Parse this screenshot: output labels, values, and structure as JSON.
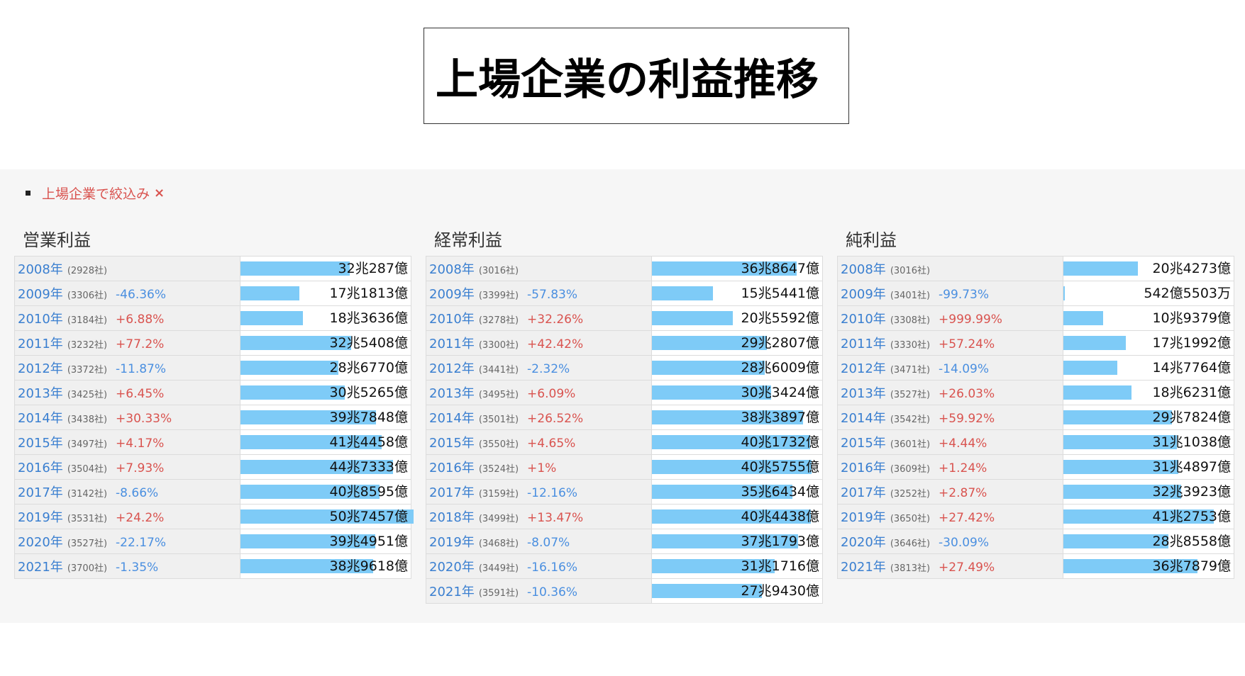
{
  "title": "上場企業の利益推移",
  "filter": {
    "label": "上場企業で絞込み",
    "close_symbol": "×"
  },
  "colors": {
    "bar": "#7ecbf7",
    "positive": "#d9534f",
    "negative": "#4a8fe0",
    "year": "#3a7fd0"
  },
  "chart_data": [
    {
      "type": "table",
      "title": "営業利益",
      "scale_max": 507457,
      "rows": [
        {
          "year": "2008年",
          "count": "(2928社)",
          "change": "",
          "value": "32兆287億",
          "value_oku": 320287
        },
        {
          "year": "2009年",
          "count": "(3306社)",
          "change": "-46.36%",
          "value": "17兆1813億",
          "value_oku": 171813
        },
        {
          "year": "2010年",
          "count": "(3184社)",
          "change": "+6.88%",
          "value": "18兆3636億",
          "value_oku": 183636
        },
        {
          "year": "2011年",
          "count": "(3232社)",
          "change": "+77.2%",
          "value": "32兆5408億",
          "value_oku": 325408
        },
        {
          "year": "2012年",
          "count": "(3372社)",
          "change": "-11.87%",
          "value": "28兆6770億",
          "value_oku": 286770
        },
        {
          "year": "2013年",
          "count": "(3425社)",
          "change": "+6.45%",
          "value": "30兆5265億",
          "value_oku": 305265
        },
        {
          "year": "2014年",
          "count": "(3438社)",
          "change": "+30.33%",
          "value": "39兆7848億",
          "value_oku": 397848
        },
        {
          "year": "2015年",
          "count": "(3497社)",
          "change": "+4.17%",
          "value": "41兆4458億",
          "value_oku": 414458
        },
        {
          "year": "2016年",
          "count": "(3504社)",
          "change": "+7.93%",
          "value": "44兆7333億",
          "value_oku": 447333
        },
        {
          "year": "2017年",
          "count": "(3142社)",
          "change": "-8.66%",
          "value": "40兆8595億",
          "value_oku": 408595
        },
        {
          "year": "2019年",
          "count": "(3531社)",
          "change": "+24.2%",
          "value": "50兆7457億",
          "value_oku": 507457
        },
        {
          "year": "2020年",
          "count": "(3527社)",
          "change": "-22.17%",
          "value": "39兆4951億",
          "value_oku": 394951
        },
        {
          "year": "2021年",
          "count": "(3700社)",
          "change": "-1.35%",
          "value": "38兆9618億",
          "value_oku": 389618
        }
      ]
    },
    {
      "type": "table",
      "title": "経常利益",
      "scale_max": 440000,
      "rows": [
        {
          "year": "2008年",
          "count": "(3016社)",
          "change": "",
          "value": "36兆8647億",
          "value_oku": 368647
        },
        {
          "year": "2009年",
          "count": "(3399社)",
          "change": "-57.83%",
          "value": "15兆5441億",
          "value_oku": 155441
        },
        {
          "year": "2010年",
          "count": "(3278社)",
          "change": "+32.26%",
          "value": "20兆5592億",
          "value_oku": 205592
        },
        {
          "year": "2011年",
          "count": "(3300社)",
          "change": "+42.42%",
          "value": "29兆2807億",
          "value_oku": 292807
        },
        {
          "year": "2012年",
          "count": "(3441社)",
          "change": "-2.32%",
          "value": "28兆6009億",
          "value_oku": 286009
        },
        {
          "year": "2013年",
          "count": "(3495社)",
          "change": "+6.09%",
          "value": "30兆3424億",
          "value_oku": 303424
        },
        {
          "year": "2014年",
          "count": "(3501社)",
          "change": "+26.52%",
          "value": "38兆3897億",
          "value_oku": 383897
        },
        {
          "year": "2015年",
          "count": "(3550社)",
          "change": "+4.65%",
          "value": "40兆1732億",
          "value_oku": 401732
        },
        {
          "year": "2016年",
          "count": "(3524社)",
          "change": "+1%",
          "value": "40兆5755億",
          "value_oku": 405755
        },
        {
          "year": "2017年",
          "count": "(3159社)",
          "change": "-12.16%",
          "value": "35兆6434億",
          "value_oku": 356434
        },
        {
          "year": "2018年",
          "count": "(3499社)",
          "change": "+13.47%",
          "value": "40兆4438億",
          "value_oku": 404438
        },
        {
          "year": "2019年",
          "count": "(3468社)",
          "change": "-8.07%",
          "value": "37兆1793億",
          "value_oku": 371793
        },
        {
          "year": "2020年",
          "count": "(3449社)",
          "change": "-16.16%",
          "value": "31兆1716億",
          "value_oku": 311716
        },
        {
          "year": "2021年",
          "count": "(3591社)",
          "change": "-10.36%",
          "value": "27兆9430億",
          "value_oku": 279430
        }
      ]
    },
    {
      "type": "table",
      "title": "純利益",
      "scale_max": 475000,
      "rows": [
        {
          "year": "2008年",
          "count": "(3016社)",
          "change": "",
          "value": "20兆4273億",
          "value_oku": 204273
        },
        {
          "year": "2009年",
          "count": "(3401社)",
          "change": "-99.73%",
          "value": "542億5503万",
          "value_oku": 542
        },
        {
          "year": "2010年",
          "count": "(3308社)",
          "change": "+999.99%",
          "value": "10兆9379億",
          "value_oku": 109379
        },
        {
          "year": "2011年",
          "count": "(3330社)",
          "change": "+57.24%",
          "value": "17兆1992億",
          "value_oku": 171992
        },
        {
          "year": "2012年",
          "count": "(3471社)",
          "change": "-14.09%",
          "value": "14兆7764億",
          "value_oku": 147764
        },
        {
          "year": "2013年",
          "count": "(3527社)",
          "change": "+26.03%",
          "value": "18兆6231億",
          "value_oku": 186231
        },
        {
          "year": "2014年",
          "count": "(3542社)",
          "change": "+59.92%",
          "value": "29兆7824億",
          "value_oku": 297824
        },
        {
          "year": "2015年",
          "count": "(3601社)",
          "change": "+4.44%",
          "value": "31兆1038億",
          "value_oku": 311038
        },
        {
          "year": "2016年",
          "count": "(3609社)",
          "change": "+1.24%",
          "value": "31兆4897億",
          "value_oku": 314897
        },
        {
          "year": "2017年",
          "count": "(3252社)",
          "change": "+2.87%",
          "value": "32兆3923億",
          "value_oku": 323923
        },
        {
          "year": "2019年",
          "count": "(3650社)",
          "change": "+27.42%",
          "value": "41兆2753億",
          "value_oku": 412753
        },
        {
          "year": "2020年",
          "count": "(3646社)",
          "change": "-30.09%",
          "value": "28兆8558億",
          "value_oku": 288558
        },
        {
          "year": "2021年",
          "count": "(3813社)",
          "change": "+27.49%",
          "value": "36兆7879億",
          "value_oku": 367879
        }
      ]
    }
  ]
}
